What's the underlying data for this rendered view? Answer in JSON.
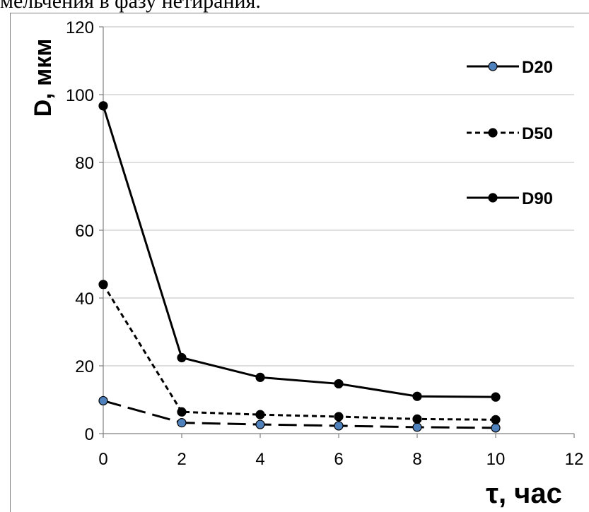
{
  "header": {
    "text": "мельчения в фазу нетирания."
  },
  "chart_data": {
    "type": "line",
    "title": "",
    "xlabel": "τ, час",
    "ylabel": "D, мкм",
    "xlim": [
      0,
      12
    ],
    "ylim": [
      0,
      120
    ],
    "x_ticks": [
      0,
      2,
      4,
      6,
      8,
      10,
      12
    ],
    "y_ticks": [
      0,
      20,
      40,
      60,
      80,
      100,
      120
    ],
    "grid": "horizontal",
    "legend_position": "right",
    "x": [
      0,
      2,
      4,
      6,
      8,
      10
    ],
    "series": [
      {
        "name": "D20",
        "values": [
          9.7,
          3.2,
          2.7,
          2.3,
          1.9,
          1.7
        ],
        "line": "long-dash",
        "marker_fill": "#4f81bd",
        "color": "#000000"
      },
      {
        "name": "D50",
        "values": [
          44,
          6.4,
          5.6,
          5.0,
          4.3,
          4.1
        ],
        "line": "short-dash",
        "marker_fill": "#000000",
        "color": "#000000"
      },
      {
        "name": "D90",
        "values": [
          96.7,
          22.4,
          16.6,
          14.7,
          11.0,
          10.8
        ],
        "line": "solid",
        "marker_fill": "#000000",
        "color": "#000000"
      }
    ]
  }
}
